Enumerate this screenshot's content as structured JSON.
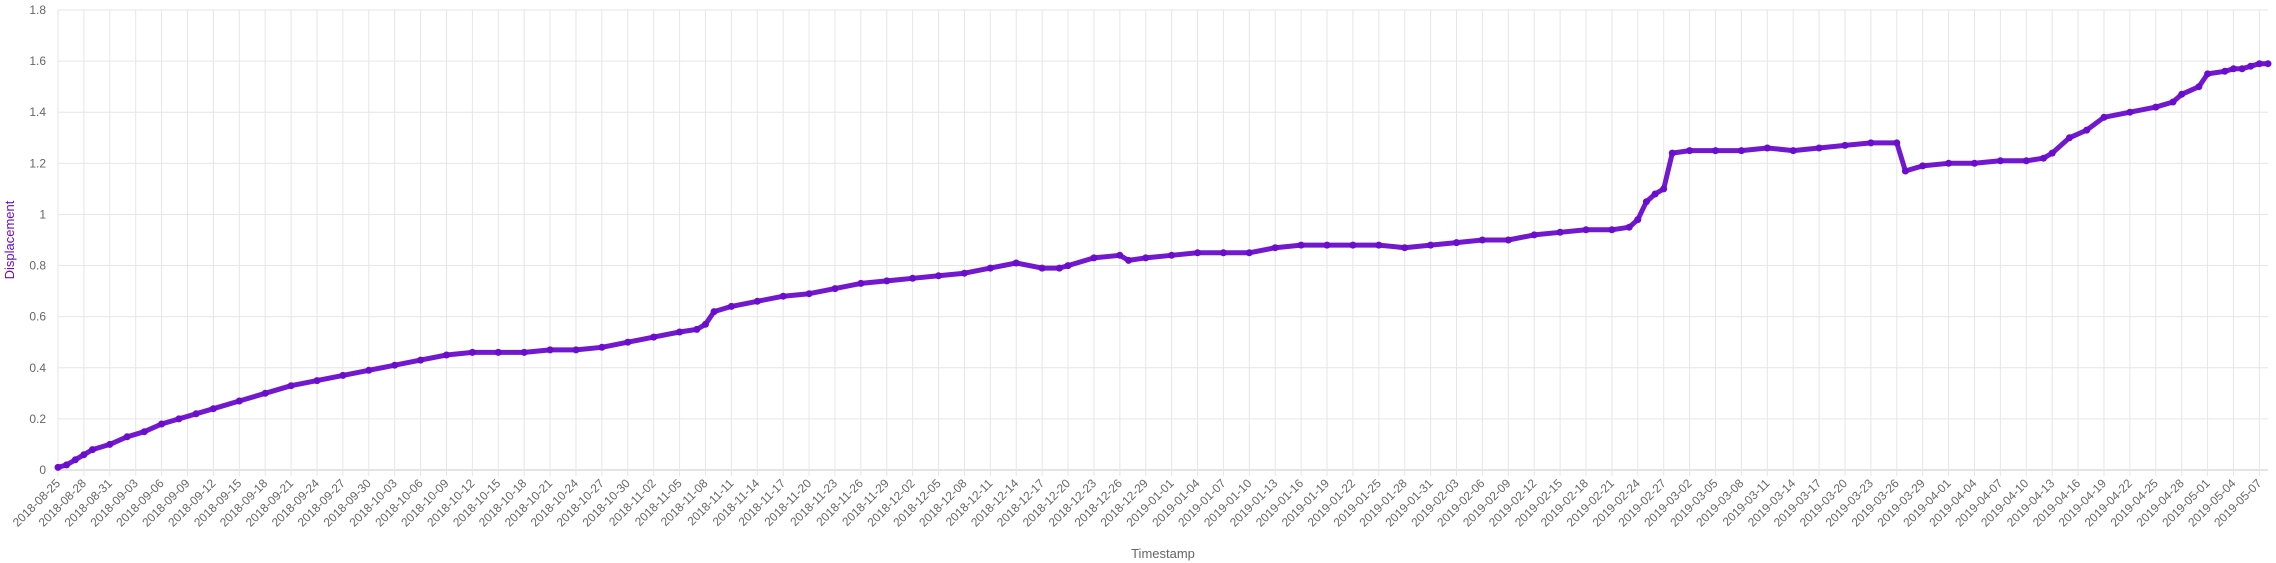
{
  "chart_data": {
    "type": "line",
    "xlabel": "Timestamp",
    "ylabel": "Displacement",
    "ylim": [
      0,
      1.8
    ],
    "yticks": [
      0,
      0.2,
      0.4,
      0.6,
      0.8,
      1.0,
      1.2,
      1.4,
      1.6,
      1.8
    ],
    "xlim": [
      "2018-08-25",
      "2019-05-08"
    ],
    "xtick_labels": [
      "2018-08-25",
      "2018-08-28",
      "2018-08-31",
      "2018-09-03",
      "2018-09-06",
      "2018-09-09",
      "2018-09-12",
      "2018-09-15",
      "2018-09-18",
      "2018-09-21",
      "2018-09-24",
      "2018-09-27",
      "2018-09-30",
      "2018-10-03",
      "2018-10-06",
      "2018-10-09",
      "2018-10-12",
      "2018-10-15",
      "2018-10-18",
      "2018-10-21",
      "2018-10-24",
      "2018-10-27",
      "2018-10-30",
      "2018-11-02",
      "2018-11-05",
      "2018-11-08",
      "2018-11-11",
      "2018-11-14",
      "2018-11-17",
      "2018-11-20",
      "2018-11-23",
      "2018-11-26",
      "2018-11-29",
      "2018-12-02",
      "2018-12-05",
      "2018-12-08",
      "2018-12-11",
      "2018-12-14",
      "2018-12-17",
      "2018-12-20",
      "2018-12-23",
      "2018-12-26",
      "2018-12-29",
      "2019-01-01",
      "2019-01-04",
      "2019-01-07",
      "2019-01-10",
      "2019-01-13",
      "2019-01-16",
      "2019-01-19",
      "2019-01-22",
      "2019-01-25",
      "2019-01-28",
      "2019-01-31",
      "2019-02-03",
      "2019-02-06",
      "2019-02-09",
      "2019-02-12",
      "2019-02-15",
      "2019-02-18",
      "2019-02-21",
      "2019-02-24",
      "2019-02-27",
      "2019-03-02",
      "2019-03-05",
      "2019-03-08",
      "2019-03-11",
      "2019-03-14",
      "2019-03-17",
      "2019-03-20",
      "2019-03-23",
      "2019-03-26",
      "2019-03-29",
      "2019-04-01",
      "2019-04-04",
      "2019-04-07",
      "2019-04-10",
      "2019-04-13",
      "2019-04-16",
      "2019-04-19",
      "2019-04-22",
      "2019-04-25",
      "2019-04-28",
      "2019-05-01",
      "2019-05-04",
      "2019-05-07"
    ],
    "grid": true,
    "legend": "none",
    "series": [
      {
        "color": "#6a0dcc",
        "x": [
          "2018-08-25",
          "2018-08-26",
          "2018-08-27",
          "2018-08-28",
          "2018-08-29",
          "2018-08-31",
          "2018-09-02",
          "2018-09-04",
          "2018-09-06",
          "2018-09-08",
          "2018-09-10",
          "2018-09-12",
          "2018-09-15",
          "2018-09-18",
          "2018-09-21",
          "2018-09-24",
          "2018-09-27",
          "2018-09-30",
          "2018-10-03",
          "2018-10-06",
          "2018-10-09",
          "2018-10-12",
          "2018-10-15",
          "2018-10-18",
          "2018-10-21",
          "2018-10-24",
          "2018-10-27",
          "2018-10-30",
          "2018-11-02",
          "2018-11-05",
          "2018-11-07",
          "2018-11-08",
          "2018-11-09",
          "2018-11-11",
          "2018-11-14",
          "2018-11-17",
          "2018-11-20",
          "2018-11-23",
          "2018-11-26",
          "2018-11-29",
          "2018-12-02",
          "2018-12-05",
          "2018-12-08",
          "2018-12-11",
          "2018-12-14",
          "2018-12-17",
          "2018-12-19",
          "2018-12-20",
          "2018-12-23",
          "2018-12-26",
          "2018-12-27",
          "2018-12-29",
          "2019-01-01",
          "2019-01-04",
          "2019-01-07",
          "2019-01-10",
          "2019-01-13",
          "2019-01-16",
          "2019-01-19",
          "2019-01-22",
          "2019-01-25",
          "2019-01-28",
          "2019-01-31",
          "2019-02-03",
          "2019-02-06",
          "2019-02-09",
          "2019-02-12",
          "2019-02-15",
          "2019-02-18",
          "2019-02-21",
          "2019-02-23",
          "2019-02-24",
          "2019-02-25",
          "2019-02-26",
          "2019-02-27",
          "2019-02-28",
          "2019-03-02",
          "2019-03-05",
          "2019-03-08",
          "2019-03-11",
          "2019-03-14",
          "2019-03-17",
          "2019-03-20",
          "2019-03-23",
          "2019-03-26",
          "2019-03-27",
          "2019-03-29",
          "2019-04-01",
          "2019-04-04",
          "2019-04-07",
          "2019-04-10",
          "2019-04-12",
          "2019-04-13",
          "2019-04-15",
          "2019-04-17",
          "2019-04-19",
          "2019-04-22",
          "2019-04-25",
          "2019-04-27",
          "2019-04-28",
          "2019-04-30",
          "2019-05-01",
          "2019-05-03",
          "2019-05-04",
          "2019-05-05",
          "2019-05-06",
          "2019-05-07",
          "2019-05-08"
        ],
        "values": [
          0.01,
          0.02,
          0.04,
          0.06,
          0.08,
          0.1,
          0.13,
          0.15,
          0.18,
          0.2,
          0.22,
          0.24,
          0.27,
          0.3,
          0.33,
          0.35,
          0.37,
          0.39,
          0.41,
          0.43,
          0.45,
          0.46,
          0.46,
          0.46,
          0.47,
          0.47,
          0.48,
          0.5,
          0.52,
          0.54,
          0.55,
          0.57,
          0.62,
          0.64,
          0.66,
          0.68,
          0.69,
          0.71,
          0.73,
          0.74,
          0.75,
          0.76,
          0.77,
          0.79,
          0.81,
          0.79,
          0.79,
          0.8,
          0.83,
          0.84,
          0.82,
          0.83,
          0.84,
          0.85,
          0.85,
          0.85,
          0.87,
          0.88,
          0.88,
          0.88,
          0.88,
          0.87,
          0.88,
          0.89,
          0.9,
          0.9,
          0.92,
          0.93,
          0.94,
          0.94,
          0.95,
          0.98,
          1.05,
          1.08,
          1.1,
          1.24,
          1.25,
          1.25,
          1.25,
          1.26,
          1.25,
          1.26,
          1.27,
          1.28,
          1.28,
          1.17,
          1.19,
          1.2,
          1.2,
          1.21,
          1.21,
          1.22,
          1.24,
          1.3,
          1.33,
          1.38,
          1.4,
          1.42,
          1.44,
          1.47,
          1.5,
          1.55,
          1.56,
          1.57,
          1.57,
          1.58,
          1.59,
          1.59
        ]
      }
    ]
  }
}
